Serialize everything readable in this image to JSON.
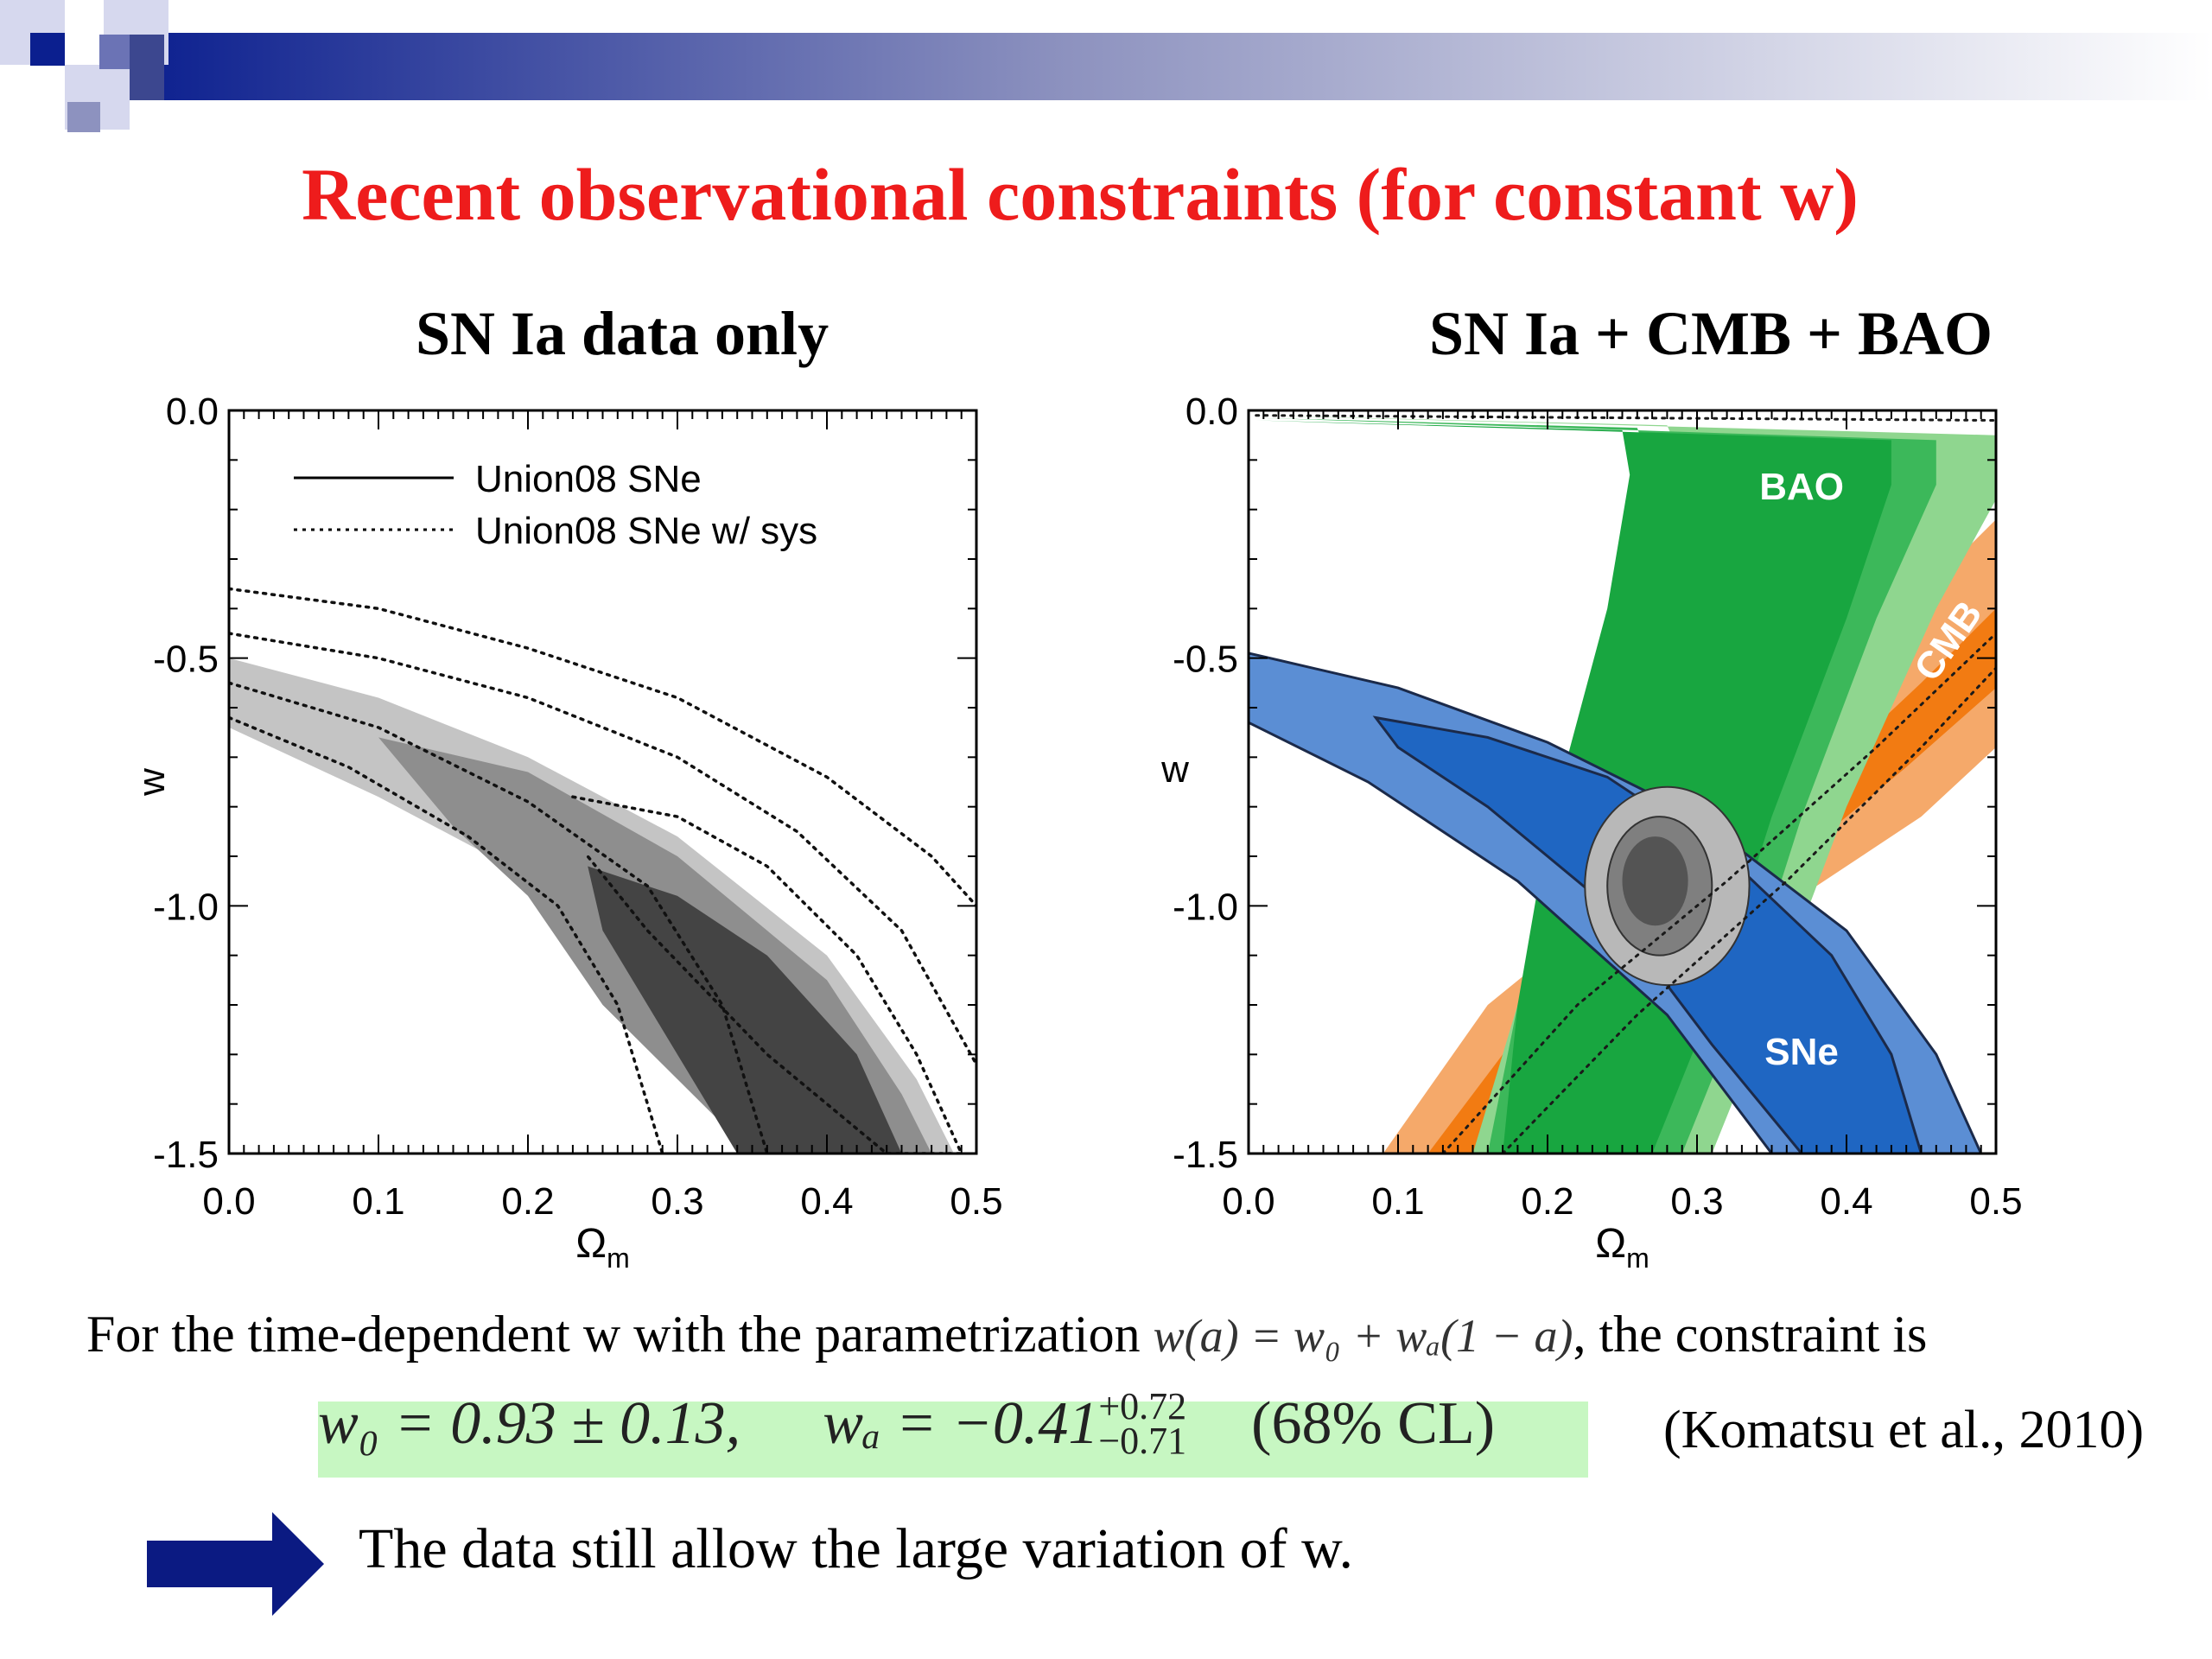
{
  "slide": {
    "title": "Recent observational constraints (for constant w)",
    "body_text_prefix": "For the time-dependent w with the parametrization",
    "parametrization": "w(a) = w₀ + wₐ(1 − a)",
    "body_text_suffix": ", the constraint is",
    "result_w0": "w₀ = 0.93 ± 0.13,",
    "result_wa_main": "wₐ = −0.41",
    "result_wa_sup": "+0.72",
    "result_wa_sub": "−0.71",
    "result_cl": "(68% CL)",
    "citation": "(Komatsu et al., 2010)",
    "conclusion": "The data still allow the large variation of w.",
    "colors": {
      "title": "#ee1c1c",
      "banner": "#0b1f8f",
      "highlight": "#c7f7c2",
      "arrow": "#0b1a82"
    },
    "icons": {
      "arrow": "right-arrow-icon"
    }
  },
  "chart_data": [
    {
      "type": "contour",
      "title": "SN Ia data only",
      "xlabel": "Ωm",
      "ylabel": "w",
      "xlim": [
        0.0,
        0.5
      ],
      "ylim": [
        -1.5,
        0.0
      ],
      "xticks": [
        "0.0",
        "0.1",
        "0.2",
        "0.3",
        "0.4",
        "0.5"
      ],
      "yticks": [
        "0.0",
        "-0.5",
        "-1.0",
        "-1.5"
      ],
      "legend": {
        "placement": "top-left",
        "entries": [
          {
            "label": "Union08 SNe",
            "style": "solid"
          },
          {
            "label": "Union08 SNe w/ sys",
            "style": "dotted"
          }
        ]
      },
      "contours": [
        {
          "level": "outer",
          "color": "#c4c4c4",
          "points": [
            [
              0.0,
              -0.5
            ],
            [
              0.1,
              -0.58
            ],
            [
              0.2,
              -0.7
            ],
            [
              0.3,
              -0.86
            ],
            [
              0.4,
              -1.1
            ],
            [
              0.46,
              -1.35
            ],
            [
              0.485,
              -1.5
            ],
            [
              0.39,
              -1.5
            ],
            [
              0.3,
              -1.18
            ],
            [
              0.2,
              -0.94
            ],
            [
              0.1,
              -0.78
            ],
            [
              0.0,
              -0.64
            ]
          ]
        },
        {
          "level": "middle",
          "color": "#8e8e8e",
          "points": [
            [
              0.1,
              -0.66
            ],
            [
              0.2,
              -0.73
            ],
            [
              0.3,
              -0.9
            ],
            [
              0.4,
              -1.15
            ],
            [
              0.45,
              -1.38
            ],
            [
              0.47,
              -1.5
            ],
            [
              0.35,
              -1.5
            ],
            [
              0.25,
              -1.2
            ],
            [
              0.2,
              -0.98
            ],
            [
              0.15,
              -0.84
            ]
          ]
        },
        {
          "level": "inner",
          "color": "#444444",
          "points": [
            [
              0.24,
              -0.92
            ],
            [
              0.3,
              -0.98
            ],
            [
              0.36,
              -1.1
            ],
            [
              0.42,
              -1.3
            ],
            [
              0.45,
              -1.5
            ],
            [
              0.34,
              -1.5
            ],
            [
              0.29,
              -1.25
            ],
            [
              0.25,
              -1.05
            ]
          ]
        }
      ],
      "dotted_curves": [
        {
          "points": [
            [
              0.0,
              -0.36
            ],
            [
              0.1,
              -0.4
            ],
            [
              0.2,
              -0.48
            ],
            [
              0.3,
              -0.58
            ],
            [
              0.4,
              -0.74
            ],
            [
              0.47,
              -0.9
            ],
            [
              0.5,
              -1.0
            ]
          ]
        },
        {
          "points": [
            [
              0.0,
              -0.45
            ],
            [
              0.1,
              -0.5
            ],
            [
              0.2,
              -0.58
            ],
            [
              0.3,
              -0.7
            ],
            [
              0.38,
              -0.85
            ],
            [
              0.45,
              -1.05
            ],
            [
              0.5,
              -1.32
            ]
          ]
        },
        {
          "points": [
            [
              0.0,
              -0.62
            ],
            [
              0.08,
              -0.72
            ],
            [
              0.16,
              -0.86
            ],
            [
              0.22,
              -1.0
            ],
            [
              0.26,
              -1.2
            ],
            [
              0.29,
              -1.5
            ]
          ]
        },
        {
          "points": [
            [
              0.0,
              -0.55
            ],
            [
              0.1,
              -0.64
            ],
            [
              0.2,
              -0.79
            ],
            [
              0.28,
              -0.96
            ],
            [
              0.33,
              -1.2
            ],
            [
              0.36,
              -1.5
            ]
          ]
        },
        {
          "points": [
            [
              0.23,
              -0.78
            ],
            [
              0.3,
              -0.82
            ],
            [
              0.36,
              -0.92
            ],
            [
              0.42,
              -1.1
            ],
            [
              0.46,
              -1.3
            ],
            [
              0.49,
              -1.5
            ],
            [
              0.44,
              -1.5
            ],
            [
              0.36,
              -1.3
            ],
            [
              0.28,
              -1.05
            ],
            [
              0.24,
              -0.9
            ]
          ]
        }
      ]
    },
    {
      "type": "contour",
      "title": "SN Ia + CMB + BAO",
      "xlabel": "Ωm",
      "ylabel": "w",
      "xlim": [
        0.0,
        0.5
      ],
      "ylim": [
        -1.5,
        0.0
      ],
      "xticks": [
        "0.0",
        "0.1",
        "0.2",
        "0.3",
        "0.4",
        "0.5"
      ],
      "yticks": [
        "0.0",
        "-0.5",
        "-1.0",
        "-1.5"
      ],
      "band_labels": [
        {
          "text": "BAO",
          "x": 0.37,
          "y": -0.18,
          "color": "#ffffff"
        },
        {
          "text": "CMB",
          "x": 0.475,
          "y": -0.48,
          "color": "#ffffff",
          "rotate": -55
        },
        {
          "text": "SNe",
          "x": 0.37,
          "y": -1.32,
          "color": "#ffffff"
        }
      ],
      "bands": [
        {
          "name": "CMB-outer",
          "color": "#f5a96a",
          "points": [
            [
              0.09,
              -1.5
            ],
            [
              0.16,
              -1.2
            ],
            [
              0.27,
              -0.93
            ],
            [
              0.37,
              -0.67
            ],
            [
              0.44,
              -0.4
            ],
            [
              0.5,
              -0.22
            ],
            [
              0.5,
              -0.68
            ],
            [
              0.45,
              -0.82
            ],
            [
              0.36,
              -1.0
            ],
            [
              0.26,
              -1.22
            ],
            [
              0.2,
              -1.5
            ]
          ]
        },
        {
          "name": "CMB-inner",
          "color": "#f27b12",
          "points": [
            [
              0.12,
              -1.5
            ],
            [
              0.19,
              -1.22
            ],
            [
              0.29,
              -0.95
            ],
            [
              0.39,
              -0.72
            ],
            [
              0.45,
              -0.55
            ],
            [
              0.5,
              -0.4
            ],
            [
              0.5,
              -0.56
            ],
            [
              0.44,
              -0.72
            ],
            [
              0.36,
              -0.92
            ],
            [
              0.25,
              -1.2
            ],
            [
              0.18,
              -1.5
            ]
          ]
        },
        {
          "name": "BAO-outer",
          "color": "#8fd68f",
          "points": [
            [
              0.005,
              -0.01
            ],
            [
              0.28,
              -0.03
            ],
            [
              0.29,
              -0.1
            ],
            [
              0.27,
              -0.35
            ],
            [
              0.22,
              -0.8
            ],
            [
              0.18,
              -1.2
            ],
            [
              0.15,
              -1.5
            ],
            [
              0.31,
              -1.5
            ],
            [
              0.35,
              -1.2
            ],
            [
              0.4,
              -0.8
            ],
            [
              0.46,
              -0.4
            ],
            [
              0.5,
              -0.18
            ],
            [
              0.5,
              -0.05
            ],
            [
              0.005,
              -0.01
            ]
          ]
        },
        {
          "name": "BAO-mid",
          "color": "#3cb85a",
          "points": [
            [
              0.005,
              -0.015
            ],
            [
              0.26,
              -0.035
            ],
            [
              0.27,
              -0.12
            ],
            [
              0.25,
              -0.38
            ],
            [
              0.21,
              -0.82
            ],
            [
              0.18,
              -1.2
            ],
            [
              0.16,
              -1.5
            ],
            [
              0.29,
              -1.5
            ],
            [
              0.33,
              -1.2
            ],
            [
              0.37,
              -0.82
            ],
            [
              0.42,
              -0.42
            ],
            [
              0.46,
              -0.15
            ],
            [
              0.46,
              -0.06
            ],
            [
              0.005,
              -0.015
            ]
          ]
        },
        {
          "name": "BAO-inner",
          "color": "#18a640",
          "points": [
            [
              0.005,
              -0.02
            ],
            [
              0.25,
              -0.04
            ],
            [
              0.255,
              -0.13
            ],
            [
              0.24,
              -0.4
            ],
            [
              0.2,
              -0.85
            ],
            [
              0.18,
              -1.2
            ],
            [
              0.17,
              -1.5
            ],
            [
              0.27,
              -1.5
            ],
            [
              0.31,
              -1.2
            ],
            [
              0.35,
              -0.82
            ],
            [
              0.4,
              -0.42
            ],
            [
              0.43,
              -0.15
            ],
            [
              0.43,
              -0.06
            ],
            [
              0.005,
              -0.02
            ]
          ]
        },
        {
          "name": "SNe-outer",
          "color": "#5b8ed4",
          "points": [
            [
              0.0,
              -0.49
            ],
            [
              0.1,
              -0.56
            ],
            [
              0.2,
              -0.67
            ],
            [
              0.3,
              -0.82
            ],
            [
              0.4,
              -1.05
            ],
            [
              0.46,
              -1.3
            ],
            [
              0.49,
              -1.5
            ],
            [
              0.35,
              -1.5
            ],
            [
              0.28,
              -1.22
            ],
            [
              0.18,
              -0.95
            ],
            [
              0.08,
              -0.75
            ],
            [
              0.0,
              -0.63
            ]
          ]
        },
        {
          "name": "SNe-inner",
          "color": "#1f66c2",
          "points": [
            [
              0.085,
              -0.62
            ],
            [
              0.16,
              -0.66
            ],
            [
              0.24,
              -0.74
            ],
            [
              0.32,
              -0.9
            ],
            [
              0.39,
              -1.1
            ],
            [
              0.43,
              -1.3
            ],
            [
              0.45,
              -1.5
            ],
            [
              0.37,
              -1.5
            ],
            [
              0.31,
              -1.28
            ],
            [
              0.24,
              -1.0
            ],
            [
              0.16,
              -0.8
            ],
            [
              0.1,
              -0.68
            ]
          ]
        },
        {
          "name": "combined-outer",
          "color": "#b8b8b8",
          "ellipse": {
            "cx": 0.28,
            "cy": -0.96,
            "rx": 0.055,
            "ry": 0.2
          }
        },
        {
          "name": "combined-mid",
          "color": "#7f7f7f",
          "ellipse": {
            "cx": 0.275,
            "cy": -0.96,
            "rx": 0.035,
            "ry": 0.14
          }
        },
        {
          "name": "combined-inner",
          "color": "#545454",
          "ellipse": {
            "cx": 0.272,
            "cy": -0.95,
            "rx": 0.022,
            "ry": 0.09
          }
        }
      ]
    }
  ]
}
